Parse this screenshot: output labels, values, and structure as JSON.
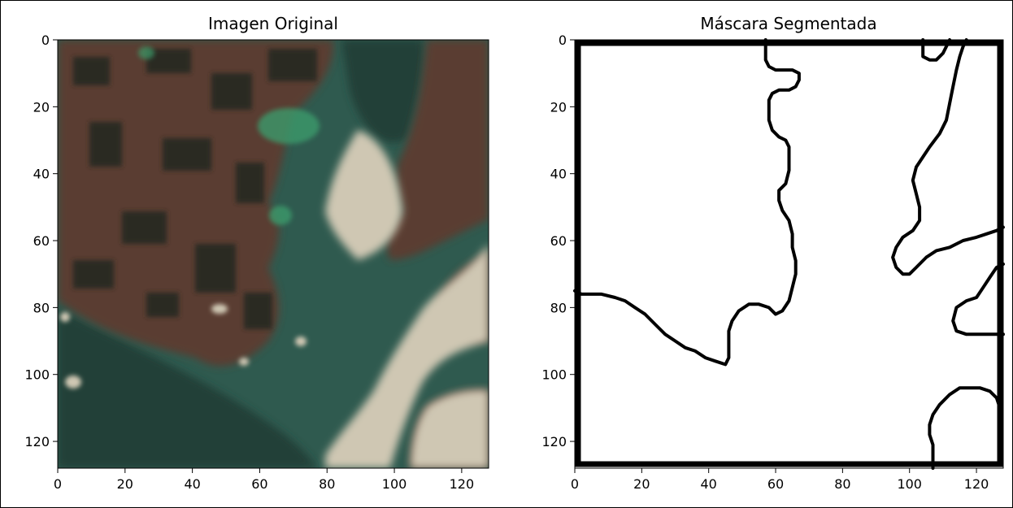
{
  "figure": {
    "panels": [
      {
        "title": "Imagen Original"
      },
      {
        "title": "Máscara Segmentada"
      }
    ]
  },
  "colors": {
    "water": "#2f5a4f",
    "water_dark": "#203f37",
    "land": "#5a3d31",
    "land_dark": "#2c2b22",
    "vegetation": "#3c9a6a",
    "cloud": "#cfc7b3",
    "mask_line": "#000000",
    "mask_bg": "#ffffff"
  },
  "chart_data": [
    {
      "type": "image",
      "title": "Imagen Original",
      "xlim": [
        0,
        128
      ],
      "ylim": [
        128,
        0
      ],
      "xticks": [
        0,
        20,
        40,
        60,
        80,
        100,
        120
      ],
      "yticks": [
        0,
        20,
        40,
        60,
        80,
        100,
        120
      ],
      "grid": false
    },
    {
      "type": "image",
      "title": "Máscara Segmentada",
      "xlim": [
        0,
        128
      ],
      "ylim": [
        128,
        0
      ],
      "xticks": [
        0,
        20,
        40,
        60,
        80,
        100,
        120
      ],
      "yticks": [
        0,
        20,
        40,
        60,
        80,
        100,
        120
      ],
      "grid": false,
      "contours": [
        [
          [
            57,
            0
          ],
          [
            57,
            2
          ],
          [
            57,
            4
          ],
          [
            57,
            6
          ],
          [
            58,
            8
          ],
          [
            60,
            9
          ],
          [
            63,
            9
          ],
          [
            65,
            9
          ],
          [
            67,
            10
          ],
          [
            67,
            12
          ],
          [
            66,
            14
          ],
          [
            64,
            15
          ],
          [
            61,
            15
          ],
          [
            59,
            16
          ],
          [
            58,
            18
          ],
          [
            58,
            21
          ],
          [
            58,
            24
          ],
          [
            59,
            27
          ],
          [
            61,
            29
          ],
          [
            63,
            30
          ],
          [
            64,
            32
          ],
          [
            64,
            35
          ],
          [
            64,
            39
          ],
          [
            63,
            43
          ],
          [
            61,
            45
          ],
          [
            61,
            48
          ],
          [
            62,
            51
          ],
          [
            64,
            54
          ],
          [
            65,
            58
          ],
          [
            65,
            62
          ],
          [
            66,
            66
          ],
          [
            66,
            70
          ],
          [
            65,
            74
          ],
          [
            64,
            78
          ],
          [
            62,
            81
          ],
          [
            60,
            82
          ],
          [
            58,
            80
          ],
          [
            55,
            79
          ],
          [
            52,
            79
          ],
          [
            49,
            81
          ],
          [
            47,
            84
          ],
          [
            46,
            87
          ],
          [
            46,
            91
          ],
          [
            46,
            95
          ],
          [
            45,
            97
          ],
          [
            42,
            96
          ],
          [
            39,
            95
          ],
          [
            36,
            93
          ],
          [
            33,
            92
          ],
          [
            30,
            90
          ],
          [
            27,
            88
          ],
          [
            24,
            85
          ],
          [
            21,
            82
          ],
          [
            18,
            80
          ],
          [
            15,
            78
          ],
          [
            12,
            77
          ],
          [
            8,
            76
          ],
          [
            5,
            76
          ],
          [
            2,
            76
          ],
          [
            0,
            75
          ]
        ],
        [
          [
            104,
            0
          ],
          [
            104,
            3
          ],
          [
            104,
            5
          ],
          [
            106,
            6
          ],
          [
            108,
            6
          ],
          [
            110,
            4
          ],
          [
            111,
            2
          ],
          [
            112,
            0
          ]
        ],
        [
          [
            117,
            0
          ],
          [
            116,
            2
          ],
          [
            115,
            5
          ],
          [
            114,
            9
          ],
          [
            113,
            14
          ],
          [
            112,
            19
          ],
          [
            111,
            24
          ],
          [
            109,
            28
          ],
          [
            106,
            32
          ],
          [
            104,
            35
          ],
          [
            102,
            38
          ],
          [
            101,
            42
          ],
          [
            102,
            46
          ],
          [
            103,
            50
          ],
          [
            103,
            54
          ],
          [
            101,
            57
          ],
          [
            98,
            59
          ],
          [
            96,
            62
          ],
          [
            95,
            65
          ],
          [
            96,
            68
          ],
          [
            98,
            70
          ],
          [
            100,
            70
          ],
          [
            102,
            68
          ],
          [
            105,
            65
          ],
          [
            108,
            63
          ],
          [
            112,
            62
          ],
          [
            116,
            60
          ],
          [
            120,
            59
          ],
          [
            123,
            58
          ],
          [
            126,
            57
          ],
          [
            128,
            56
          ]
        ],
        [
          [
            128,
            67
          ],
          [
            126,
            68
          ],
          [
            124,
            71
          ],
          [
            122,
            74
          ],
          [
            120,
            77
          ],
          [
            117,
            78
          ],
          [
            114,
            80
          ],
          [
            113,
            84
          ],
          [
            114,
            87
          ],
          [
            117,
            88
          ],
          [
            120,
            88
          ],
          [
            124,
            88
          ],
          [
            128,
            88
          ]
        ],
        [
          [
            107,
            128
          ],
          [
            107,
            124
          ],
          [
            107,
            121
          ],
          [
            106,
            118
          ],
          [
            106,
            115
          ],
          [
            107,
            112
          ],
          [
            109,
            109
          ],
          [
            112,
            106
          ],
          [
            115,
            104
          ],
          [
            118,
            104
          ],
          [
            121,
            104
          ],
          [
            124,
            105
          ],
          [
            126,
            107
          ],
          [
            127,
            110
          ]
        ]
      ]
    }
  ]
}
